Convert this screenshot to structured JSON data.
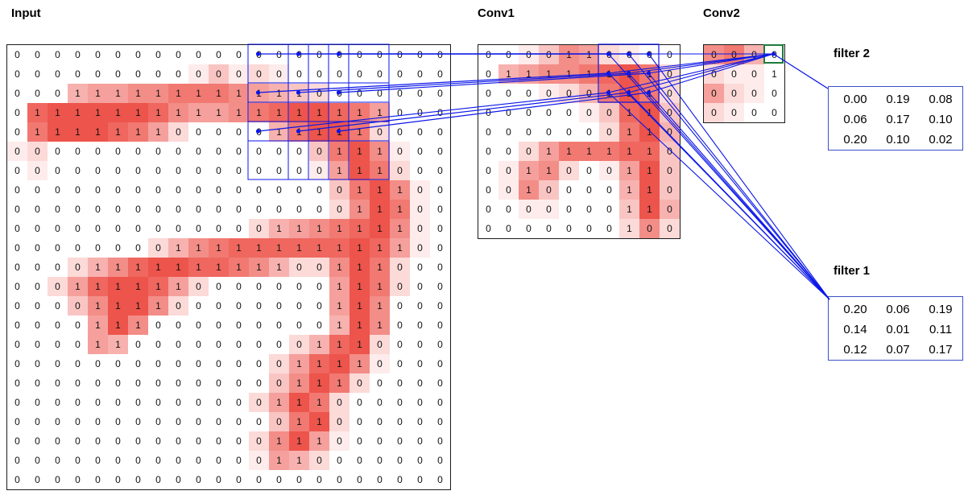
{
  "labels": {
    "input": "Input",
    "conv1": "Conv1",
    "conv2": "Conv2",
    "filter1": "filter 1",
    "filter2": "filter 2"
  },
  "colors": {
    "cell_red": "#EB453C",
    "line_blue": "#0B16E8",
    "green_box": "#1E7B3C",
    "grid_border": "#1A1A1A",
    "filter_border": "#3C50C8"
  },
  "input_grid": {
    "cols": 22,
    "rows": 23,
    "values": [
      "0000000000000000000000",
      "0000000000000000000000",
      "0001111111111110000000",
      "0111111111111111111000",
      "0111111100000111110000",
      "0000000000000000111000",
      "0000000000000000111000",
      "0000000000000000011100",
      "0000000000000000011100",
      "0000000000000111111100",
      "0000000011111111111100",
      "0000111111111100111000",
      "0001111110000000111000",
      "0000111100000000111000",
      "0000111000000000111000",
      "0000110000000001110000",
      "0000000000000011110000",
      "0000000000000011100000",
      "0000000000000111000000",
      "0000000000000011000000",
      "0000000000000111000000",
      "0000000000000110000000",
      "0000000000000000000000"
    ],
    "shades": [
      "0000000000000000000000",
      "0000000001312100000000",
      "0004556677765432000000",
      "0899999865567899875000",
      "0799987520000479972000",
      "1200000000000003796100",
      "0100000000000001597200",
      "0000000000000000379610",
      "0000000000000000269710",
      "0000000000002456789610",
      "0000000246788888898510",
      "0002468998876422697200",
      "0025899852000000597200",
      "0003699620000000596000",
      "0000596000000000496000",
      "0000540000000024892000",
      "0000000000000258961000",
      "0000000000000369720000",
      "0000000000002597200000",
      "0000000000000379200000",
      "0000000000002695100000",
      "0000000000001542000000",
      "0000000000000000000000"
    ]
  },
  "conv1_grid": {
    "cols": 10,
    "rows": 10,
    "values": [
      "0000110000",
      "0111111110",
      "0000001110",
      "0000000110",
      "0000000110",
      "0001111110",
      "0011000110",
      "0010000110",
      "0000000110",
      "0000000100"
    ],
    "shades": [
      "0013652100",
      "0456678972",
      "0001247972",
      "0000013893",
      "0000002794",
      "0025777883",
      "0156201593",
      "0163000493",
      "0011000394",
      "0000000262"
    ]
  },
  "conv2_grid": {
    "cols": 4,
    "rows": 4,
    "values": [
      "0000",
      "0001",
      "0000",
      "0000"
    ],
    "shades": [
      "6740",
      "2110",
      "5210",
      "2100"
    ]
  },
  "filter1": {
    "rows": [
      [
        "0.20",
        "0.06",
        "0.19"
      ],
      [
        "0.14",
        "0.01",
        "0.11"
      ],
      [
        "0.12",
        "0.07",
        "0.17"
      ]
    ]
  },
  "filter2": {
    "rows": [
      [
        "0.00",
        "0.19",
        "0.08"
      ],
      [
        "0.06",
        "0.17",
        "0.10"
      ],
      [
        "0.20",
        "0.10",
        "0.02"
      ]
    ]
  },
  "highlights": {
    "input_patches": {
      "row_starts": [
        0,
        2,
        4
      ],
      "col_starts": [
        12,
        14,
        16
      ],
      "size": 3
    },
    "conv1_patch": {
      "row": 0,
      "col": 6,
      "size": 3
    },
    "conv2_cell": {
      "row": 0,
      "col": 3
    }
  }
}
